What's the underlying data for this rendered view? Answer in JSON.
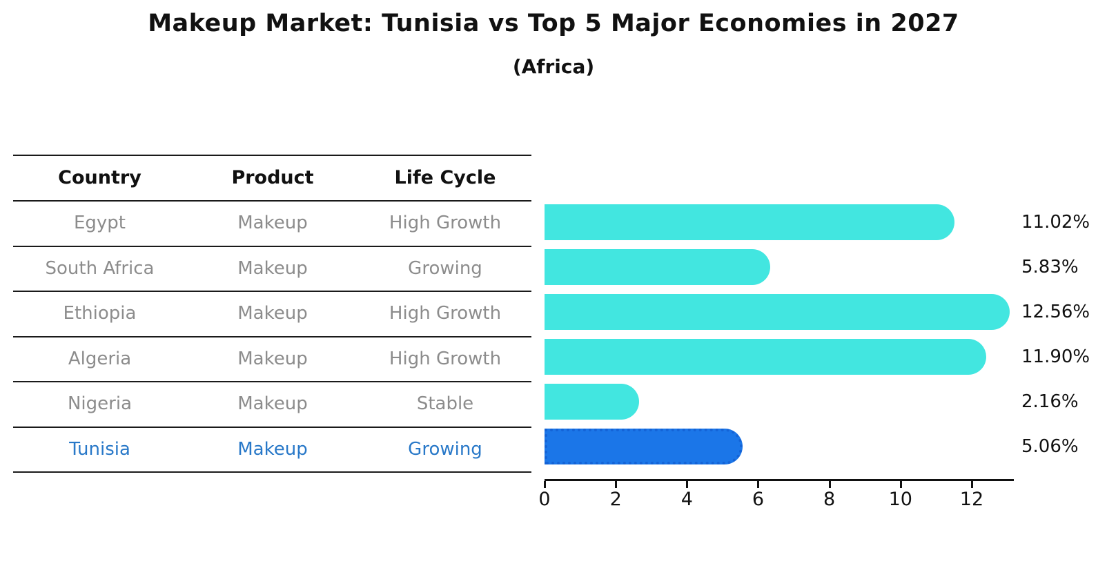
{
  "title": "Makeup Market: Tunisia vs Top 5 Major Economies in 2027",
  "subtitle": "(Africa)",
  "table": {
    "headers": [
      "Country",
      "Product",
      "Life Cycle"
    ],
    "rows": [
      {
        "country": "Egypt",
        "product": "Makeup",
        "life_cycle": "High Growth",
        "highlight": false
      },
      {
        "country": "South Africa",
        "product": "Makeup",
        "life_cycle": "Growing",
        "highlight": false
      },
      {
        "country": "Ethiopia",
        "product": "Makeup",
        "life_cycle": "High Growth",
        "highlight": false
      },
      {
        "country": "Algeria",
        "product": "Makeup",
        "life_cycle": "High Growth",
        "highlight": false
      },
      {
        "country": "Nigeria",
        "product": "Makeup",
        "life_cycle": "Stable",
        "highlight": false
      },
      {
        "country": "Tunisia",
        "product": "Makeup",
        "life_cycle": "Growing",
        "highlight": true
      }
    ]
  },
  "chart_data": {
    "type": "bar",
    "orientation": "horizontal",
    "title": "Makeup Market: Tunisia vs Top 5 Major Economies in 2027",
    "subtitle": "(Africa)",
    "categories": [
      "Egypt",
      "South Africa",
      "Ethiopia",
      "Algeria",
      "Nigeria",
      "Tunisia"
    ],
    "values": [
      11.02,
      5.83,
      12.56,
      11.9,
      2.16,
      5.06
    ],
    "value_labels": [
      "11.02%",
      "5.83%",
      "12.56%",
      "11.90%",
      "2.16%",
      "5.06%"
    ],
    "xlim": [
      0,
      13.2
    ],
    "xticks": [
      0,
      2,
      4,
      6,
      8,
      10,
      12
    ],
    "grid": false,
    "legend": false,
    "highlight_index": 5
  },
  "colors": {
    "bar": "#42E6E0",
    "highlight_bar": "#1B76E8",
    "highlight_border": "#1463D6",
    "highlight_text": "#2878C8",
    "row_text": "#8c8c8c",
    "ink": "#111111"
  }
}
